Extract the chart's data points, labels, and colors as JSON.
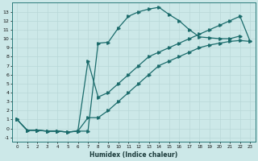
{
  "xlabel": "Humidex (Indice chaleur)",
  "bg_color": "#cce8e8",
  "line_color": "#1a6b6b",
  "grid_color": "#b8d8d8",
  "xlim": [
    -0.5,
    23.5
  ],
  "ylim": [
    -1.5,
    14
  ],
  "xticks": [
    0,
    1,
    2,
    3,
    4,
    5,
    6,
    7,
    8,
    9,
    10,
    11,
    12,
    13,
    14,
    15,
    16,
    17,
    18,
    19,
    20,
    21,
    22,
    23
  ],
  "yticks": [
    -1,
    0,
    1,
    2,
    3,
    4,
    5,
    6,
    7,
    8,
    9,
    10,
    11,
    12,
    13
  ],
  "line1_x": [
    0,
    1,
    2,
    3,
    4,
    5,
    6,
    7,
    8,
    9,
    10,
    11,
    12,
    13,
    14,
    15,
    16,
    17,
    18,
    19,
    20,
    21,
    22
  ],
  "line1_y": [
    1.0,
    -0.2,
    -0.2,
    -0.3,
    -0.3,
    -0.4,
    -0.3,
    -0.3,
    9.5,
    9.6,
    11.2,
    12.5,
    13.0,
    13.3,
    13.5,
    12.7,
    12.0,
    11.0,
    10.2,
    10.1,
    10.0,
    10.0,
    10.3
  ],
  "line2_x": [
    0,
    1,
    2,
    3,
    4,
    5,
    6,
    7,
    8,
    9,
    10,
    11,
    12,
    13,
    14,
    15,
    16,
    17,
    18,
    19,
    20,
    21,
    22,
    23
  ],
  "line2_y": [
    1.0,
    -0.2,
    -0.2,
    -0.3,
    -0.3,
    -0.4,
    -0.3,
    7.5,
    3.5,
    4.0,
    5.0,
    6.0,
    7.0,
    8.0,
    8.5,
    9.0,
    9.5,
    10.0,
    10.5,
    11.0,
    11.5,
    12.0,
    12.5,
    9.7
  ],
  "line3_x": [
    0,
    1,
    2,
    3,
    4,
    5,
    6,
    7,
    8,
    9,
    10,
    11,
    12,
    13,
    14,
    15,
    16,
    17,
    18,
    19,
    20,
    21,
    22,
    23
  ],
  "line3_y": [
    1.0,
    -0.2,
    -0.2,
    -0.3,
    -0.3,
    -0.4,
    -0.3,
    1.2,
    1.2,
    2.0,
    3.0,
    4.0,
    5.0,
    6.0,
    7.0,
    7.5,
    8.0,
    8.5,
    9.0,
    9.3,
    9.5,
    9.7,
    9.8,
    9.7
  ]
}
